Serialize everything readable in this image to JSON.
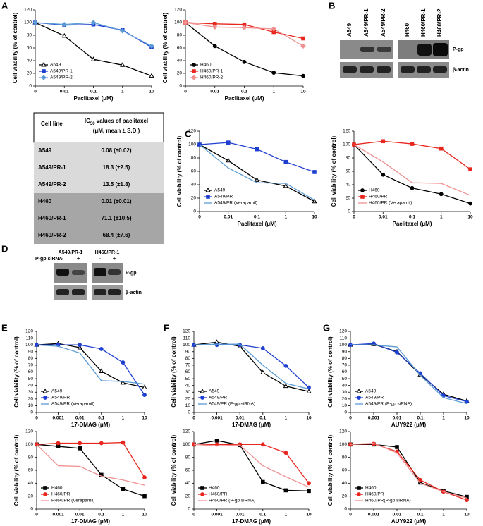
{
  "panels": [
    "A",
    "B",
    "C",
    "D",
    "E",
    "F",
    "G"
  ],
  "table": {
    "header": [
      "Cell line",
      "IC",
      "50",
      " values of paclitaxel",
      "(μM, mean ± S.D.)"
    ],
    "rows": [
      [
        "A549",
        "0.08 (±0.02)"
      ],
      [
        "A549/PR-1",
        "18.3 (±2.5)"
      ],
      [
        "A549/PR-2",
        "13.5 (±1.8)"
      ],
      [
        "H460",
        "0.01 (±0.01)"
      ],
      [
        "H460/PR-1",
        "71.1 (±10.5)"
      ],
      [
        "H460/PR-2",
        "68.4 (±7.6)"
      ]
    ]
  },
  "blot_b": {
    "columns": [
      "A549",
      "A549/PR-1",
      "A549/PR-2",
      "H460",
      "H460/PR-1",
      "H460/PR-2"
    ],
    "rows": [
      "P-gp",
      "β-actin"
    ]
  },
  "blot_d": {
    "groups": [
      "A549/PR-1",
      "H460/PR-1"
    ],
    "treatment": "P-gp siRNA",
    "lanes": [
      "-",
      "+",
      "-",
      "+"
    ],
    "rows": [
      "P-gp",
      "β-actin"
    ]
  },
  "chart_data": [
    {
      "type": "line",
      "xlabel": "Paclitaxel (μM)",
      "ylabel": "Cell viability (% of control)",
      "categories": [
        "0",
        "0.01",
        "0.1",
        "1",
        "10"
      ],
      "ylim": [
        0,
        120
      ],
      "yticks": [
        0,
        20,
        40,
        60,
        80,
        100,
        120
      ],
      "legend": "lower left",
      "series": [
        {
          "name": "A549",
          "color": "#000000",
          "marker": "triangle",
          "values": [
            100,
            79,
            42,
            33,
            16
          ]
        },
        {
          "name": "A549/PR-1",
          "color": "#1f3fcf",
          "marker": "square",
          "values": [
            100,
            96,
            97,
            88,
            61
          ]
        },
        {
          "name": "A549/PR-2",
          "color": "#5b9bd5",
          "marker": "diamond",
          "values": [
            100,
            97,
            100,
            87,
            63
          ]
        }
      ]
    },
    {
      "type": "line",
      "xlabel": "Paclitaxel (μM)",
      "ylabel": "Cell viability (% of control)",
      "categories": [
        "0",
        "0.01",
        "0.1",
        "1",
        "10"
      ],
      "ylim": [
        0,
        120
      ],
      "yticks": [
        0,
        20,
        40,
        60,
        80,
        100,
        120
      ],
      "legend": "lower left",
      "series": [
        {
          "name": "H460",
          "color": "#000000",
          "marker": "circle",
          "values": [
            100,
            63,
            38,
            21,
            16
          ]
        },
        {
          "name": "H460/PR-1",
          "color": "#e8261e",
          "marker": "square",
          "values": [
            100,
            98,
            97,
            85,
            75
          ]
        },
        {
          "name": "H460/PR-2",
          "color": "#f09090",
          "marker": "diamond",
          "values": [
            100,
            93,
            92,
            90,
            63
          ]
        }
      ]
    },
    {
      "type": "line",
      "xlabel": "Paclitaxel (μM)",
      "ylabel": "Cell viability (% of control)",
      "categories": [
        "0",
        "0.01",
        "0.1",
        "1",
        "10"
      ],
      "ylim": [
        0,
        120
      ],
      "yticks": [
        0,
        20,
        40,
        60,
        80,
        100,
        120
      ],
      "legend": "lower left",
      "series": [
        {
          "name": "A549",
          "color": "#000000",
          "marker": "triangle",
          "values": [
            100,
            76,
            47,
            38,
            15
          ]
        },
        {
          "name": "A549/PR",
          "color": "#1f3fcf",
          "marker": "square",
          "values": [
            100,
            103,
            93,
            74,
            59
          ]
        },
        {
          "name": "A549/PR (Verapamil)",
          "color": "#5b9bd5",
          "marker": "none",
          "values": [
            100,
            65,
            43,
            42,
            17
          ]
        }
      ]
    },
    {
      "type": "line",
      "xlabel": "Paclitaxel (μM)",
      "ylabel": "Cell viability (% of control)",
      "categories": [
        "0",
        "0.01",
        "0.1",
        "1",
        "10"
      ],
      "ylim": [
        0,
        120
      ],
      "yticks": [
        0,
        20,
        40,
        60,
        80,
        100,
        120
      ],
      "legend": "lower left",
      "series": [
        {
          "name": "H460",
          "color": "#000000",
          "marker": "circle",
          "values": [
            100,
            55,
            35,
            26,
            12
          ]
        },
        {
          "name": "H460/PR",
          "color": "#e8261e",
          "marker": "square",
          "values": [
            100,
            105,
            101,
            94,
            63
          ]
        },
        {
          "name": "H460/PR (Verapamil)",
          "color": "#f09090",
          "marker": "none",
          "values": [
            100,
            74,
            43,
            42,
            24
          ]
        }
      ]
    },
    {
      "type": "line",
      "xlabel": "17-DMAG (μM)",
      "ylabel": "Cell viability (% of control)",
      "categories": [
        "0",
        "0.001",
        "0.01",
        "0.1",
        "1",
        "10"
      ],
      "ylim": [
        0,
        120
      ],
      "yticks": [
        0,
        10,
        20,
        30,
        40,
        50,
        60,
        70,
        80,
        90,
        100,
        110,
        120
      ],
      "legend": "lower left",
      "series": [
        {
          "name": "A549",
          "color": "#000000",
          "marker": "triangle",
          "values": [
            100,
            102,
            96,
            61,
            44,
            37
          ]
        },
        {
          "name": "A549/PR",
          "color": "#1f3fcf",
          "marker": "circle",
          "values": [
            100,
            100,
            100,
            94,
            74,
            26
          ]
        },
        {
          "name": "A549/PR (Verapamil)",
          "color": "#5b9bd5",
          "marker": "none",
          "values": [
            100,
            98,
            88,
            47,
            46,
            42
          ]
        }
      ]
    },
    {
      "type": "line",
      "xlabel": "17-DMAG (μM)",
      "ylabel": "Cell viability (% of control)",
      "categories": [
        "0",
        "0.001",
        "0.01",
        "0.1",
        "1",
        "10"
      ],
      "ylim": [
        0,
        120
      ],
      "yticks": [
        0,
        20,
        40,
        60,
        80,
        100,
        120
      ],
      "legend": "lower left",
      "series": [
        {
          "name": "H460",
          "color": "#000000",
          "marker": "square",
          "values": [
            100,
            97,
            94,
            53,
            31,
            20
          ]
        },
        {
          "name": "H460/PR",
          "color": "#e8261e",
          "marker": "circle",
          "values": [
            100,
            102,
            102,
            102,
            103,
            49
          ]
        },
        {
          "name": "H460/PR (Verapamil)",
          "color": "#f09090",
          "marker": "none",
          "values": [
            100,
            67,
            66,
            51,
            45,
            37
          ]
        }
      ]
    },
    {
      "type": "line",
      "xlabel": "17-DMAG (μM)",
      "ylabel": "Cell viability (% of control)",
      "categories": [
        "0",
        "0.001",
        "0.01",
        "0.1",
        "1",
        "10"
      ],
      "ylim": [
        0,
        120
      ],
      "yticks": [
        0,
        10,
        20,
        30,
        40,
        50,
        60,
        70,
        80,
        90,
        100,
        110,
        120
      ],
      "legend": "lower left",
      "series": [
        {
          "name": "A549",
          "color": "#000000",
          "marker": "triangle",
          "values": [
            100,
            104,
            98,
            59,
            39,
            31
          ]
        },
        {
          "name": "A549/PR",
          "color": "#1f3fcf",
          "marker": "circle",
          "values": [
            100,
            100,
            100,
            95,
            69,
            37
          ]
        },
        {
          "name": "A549/PR (P-gp siRNA)",
          "color": "#5b9bd5",
          "marker": "none",
          "values": [
            100,
            101,
            101,
            70,
            43,
            35
          ]
        }
      ]
    },
    {
      "type": "line",
      "xlabel": "17-DMAG (μM)",
      "ylabel": "Cell viability (% of control)",
      "categories": [
        "0",
        "0.001",
        "0.01",
        "0.1",
        "1",
        "10"
      ],
      "ylim": [
        0,
        120
      ],
      "yticks": [
        0,
        20,
        40,
        60,
        80,
        100,
        120
      ],
      "legend": "lower left",
      "series": [
        {
          "name": "H460",
          "color": "#000000",
          "marker": "square",
          "values": [
            100,
            106,
            99,
            42,
            29,
            28
          ]
        },
        {
          "name": "H460/PR",
          "color": "#e8261e",
          "marker": "circle",
          "values": [
            100,
            100,
            100,
            100,
            87,
            40
          ]
        },
        {
          "name": "H460/PR (P-gp siRNA)",
          "color": "#f09090",
          "marker": "none",
          "values": [
            100,
            98,
            99,
            67,
            50,
            34
          ]
        }
      ]
    },
    {
      "type": "line",
      "xlabel": "AUY922 (μM)",
      "ylabel": "Cell viability (% of control)",
      "categories": [
        "0",
        "0.001",
        "0.01",
        "0.1",
        "1",
        "10"
      ],
      "ylim": [
        0,
        120
      ],
      "yticks": [
        0,
        10,
        20,
        30,
        40,
        50,
        60,
        70,
        80,
        90,
        100,
        110,
        120
      ],
      "legend": "lower left",
      "series": [
        {
          "name": "A549",
          "color": "#000000",
          "marker": "triangle",
          "values": [
            100,
            101,
            90,
            56,
            27,
            17
          ]
        },
        {
          "name": "A549/PR",
          "color": "#1f3fcf",
          "marker": "circle",
          "values": [
            100,
            102,
            89,
            58,
            25,
            16
          ]
        },
        {
          "name": "A549/PR (P-gp siRNA)",
          "color": "#5b9bd5",
          "marker": "none",
          "values": [
            100,
            100,
            97,
            55,
            22,
            13
          ]
        }
      ]
    },
    {
      "type": "line",
      "xlabel": "AUY922 (μM)",
      "ylabel": "Cell viability (% of control)",
      "categories": [
        "0",
        "0.001",
        "0.01",
        "0.1",
        "1",
        "10"
      ],
      "ylim": [
        0,
        120
      ],
      "yticks": [
        0,
        20,
        40,
        60,
        80,
        100,
        120
      ],
      "legend": "lower left",
      "series": [
        {
          "name": "H460",
          "color": "#000000",
          "marker": "square",
          "values": [
            100,
            100,
            96,
            41,
            28,
            19
          ]
        },
        {
          "name": "H460/PR",
          "color": "#e8261e",
          "marker": "circle",
          "values": [
            100,
            101,
            89,
            45,
            27,
            14
          ]
        },
        {
          "name": "H460/PR(P-gp siRNA)",
          "color": "#f09090",
          "marker": "none",
          "values": [
            100,
            102,
            87,
            40,
            27,
            17
          ]
        }
      ]
    }
  ]
}
